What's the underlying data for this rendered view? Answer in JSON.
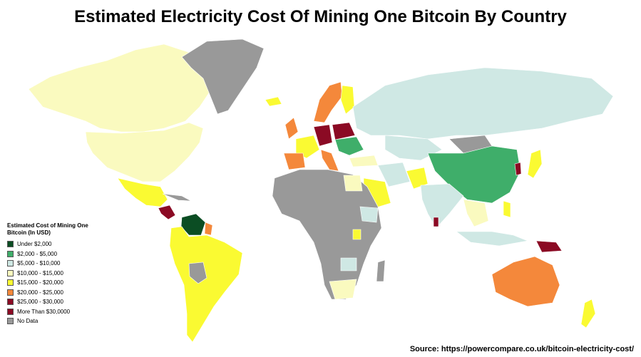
{
  "title": "Estimated Electricity Cost Of Mining One Bitcoin By Country",
  "source": "Source: https://powercompare.co.uk/bitcoin-electricity-cost/",
  "legend": {
    "title": "Estimated Cost of Mining One Bitcoin (In USD)",
    "items": [
      {
        "label": "Under $2,000",
        "color": "#0b4d23"
      },
      {
        "label": "$2,000 - $5,000",
        "color": "#3fae6a"
      },
      {
        "label": "$5,000 - $10,000",
        "color": "#cfe8e4"
      },
      {
        "label": "$10,000 - $15,000",
        "color": "#fafabf"
      },
      {
        "label": "$15,000 - $20,000",
        "color": "#fafa32"
      },
      {
        "label": "$20,000 - $25,000",
        "color": "#f4883b"
      },
      {
        "label": "$25,000 - $30,000",
        "color": "#8b0a24"
      },
      {
        "label": "More Than $30,0000",
        "color": "#8b0a24"
      },
      {
        "label": "No Data",
        "color": "#999999"
      }
    ]
  },
  "colors": {
    "no_data": "#999999",
    "low": "#0b4d23",
    "green": "#3fae6a",
    "light_blue": "#cfe8e4",
    "pale_yellow": "#fafabf",
    "yellow": "#fafa32",
    "orange": "#f4883b",
    "dark_red": "#8b0a24"
  }
}
